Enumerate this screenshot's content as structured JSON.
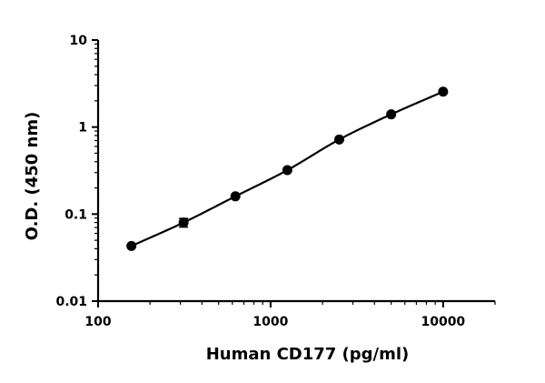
{
  "chart_data": {
    "type": "scatter",
    "title": "",
    "xlabel": "Human CD177 (pg/ml)",
    "ylabel": "O.D. (450 nm)",
    "xscale": "log",
    "yscale": "log",
    "xlim": [
      100,
      20000
    ],
    "ylim": [
      0.01,
      10
    ],
    "x_ticks": [
      100,
      1000,
      10000
    ],
    "x_tick_labels": [
      "100",
      "1000",
      "10000"
    ],
    "y_ticks": [
      0.01,
      0.1,
      1,
      10
    ],
    "y_tick_labels": [
      "0.01",
      "0.1",
      "1",
      "10"
    ],
    "grid": false,
    "legend": "none",
    "fit_curve": true,
    "series": [
      {
        "x": [
          156,
          313,
          625,
          1250,
          2500,
          5000,
          10000
        ],
        "y": [
          0.043,
          0.08,
          0.16,
          0.32,
          0.72,
          1.4,
          2.55
        ],
        "y_err": [
          0.002,
          0.009,
          0.006,
          0.012,
          0.03,
          0.05,
          0.08
        ]
      }
    ]
  },
  "colors": {
    "ink": "#000000",
    "background": "#ffffff"
  }
}
